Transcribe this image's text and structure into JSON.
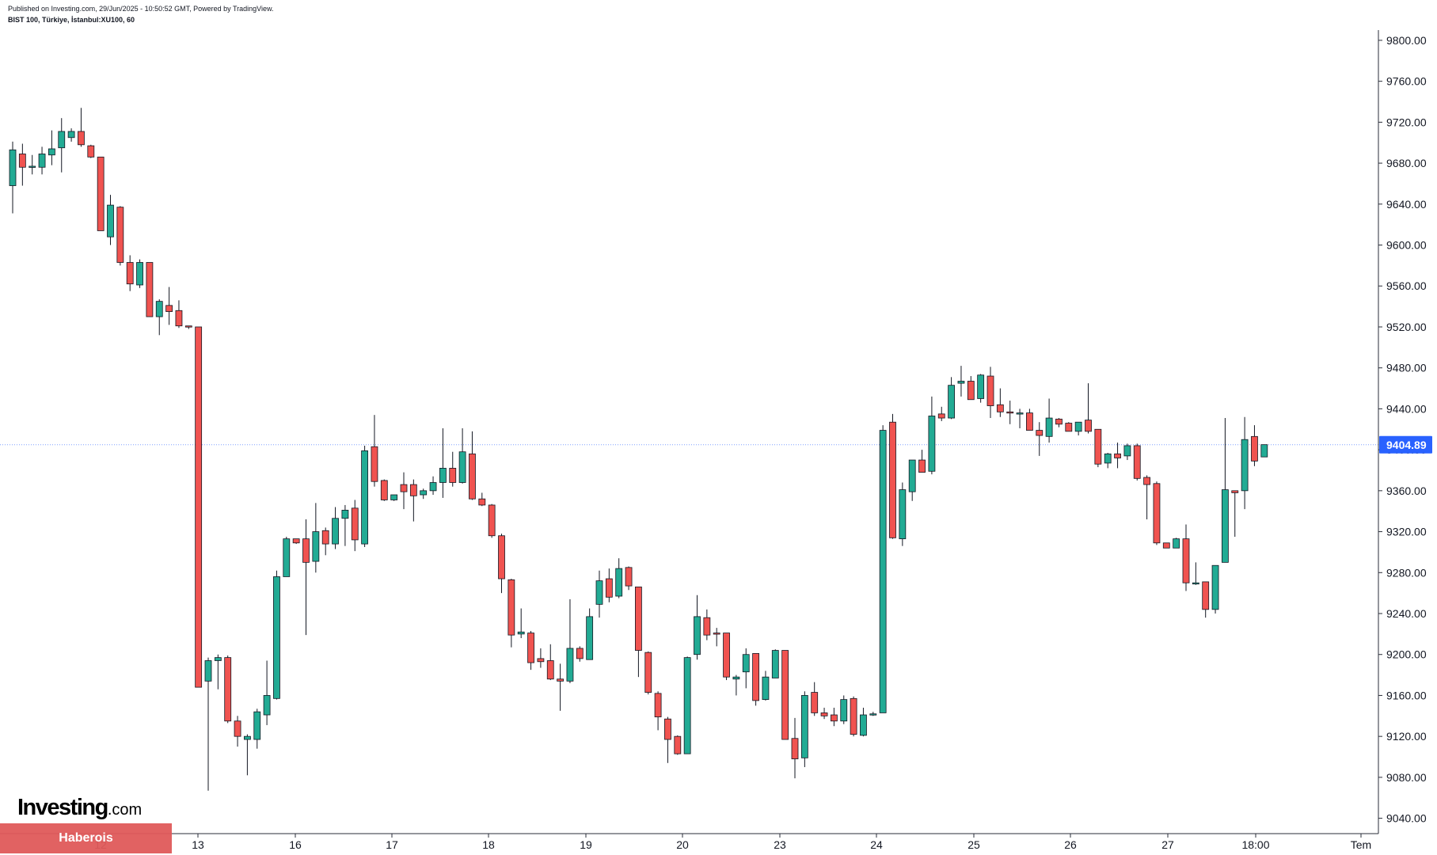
{
  "header": {
    "published": "Published on Investing.com, 29/Jun/2025 - 10:50:52 GMT, Powered by TradingView.",
    "symbol": "BIST 100, Türkiye, İstanbul:XU100, 60"
  },
  "logo": {
    "main": "Investing",
    "suffix": ".com"
  },
  "watermark": {
    "text": "Haberois"
  },
  "colors": {
    "up": "#22ab94",
    "down": "#f05350",
    "wick": "#131722",
    "last_price_bg": "#2962ff",
    "price_line": "#2962ff"
  },
  "chart_data": {
    "type": "candlestick",
    "title": "BIST 100, Türkiye, İstanbul:XU100, 60",
    "interval": "60",
    "y_axis": {
      "position": "right",
      "ylim": [
        9025,
        9810
      ],
      "ticks": [
        "9800.00",
        "9760.00",
        "9720.00",
        "9680.00",
        "9640.00",
        "9600.00",
        "9560.00",
        "9520.00",
        "9480.00",
        "9440.00",
        "9400.00",
        "9360.00",
        "9320.00",
        "9280.00",
        "9240.00",
        "9200.00",
        "9160.00",
        "9120.00",
        "9080.00",
        "9040.00"
      ]
    },
    "x_axis": {
      "ticks": [
        "12",
        "13",
        "16",
        "17",
        "18",
        "19",
        "20",
        "23",
        "24",
        "25",
        "26",
        "27",
        "18:00",
        "Tem"
      ]
    },
    "last_price": 9404.89,
    "grid": false,
    "candles": [
      {
        "o": 9658,
        "h": 9701,
        "l": 9631,
        "c": 9693
      },
      {
        "o": 9689,
        "h": 9699,
        "l": 9658,
        "c": 9676
      },
      {
        "o": 9677,
        "h": 9688,
        "l": 9669,
        "c": 9677
      },
      {
        "o": 9676,
        "h": 9696,
        "l": 9669,
        "c": 9689
      },
      {
        "o": 9688,
        "h": 9712,
        "l": 9678,
        "c": 9694
      },
      {
        "o": 9695,
        "h": 9724,
        "l": 9671,
        "c": 9711
      },
      {
        "o": 9705,
        "h": 9714,
        "l": 9701,
        "c": 9711
      },
      {
        "o": 9711,
        "h": 9734,
        "l": 9696,
        "c": 9698
      },
      {
        "o": 9697,
        "h": 9698,
        "l": 9685,
        "c": 9686
      },
      {
        "o": 9686,
        "h": 9686,
        "l": 9614,
        "c": 9614
      },
      {
        "o": 9608,
        "h": 9649,
        "l": 9600,
        "c": 9639
      },
      {
        "o": 9637,
        "h": 9638,
        "l": 9580,
        "c": 9583
      },
      {
        "o": 9583,
        "h": 9590,
        "l": 9555,
        "c": 9562
      },
      {
        "o": 9561,
        "h": 9586,
        "l": 9558,
        "c": 9583
      },
      {
        "o": 9583,
        "h": 9583,
        "l": 9530,
        "c": 9530
      },
      {
        "o": 9530,
        "h": 9547,
        "l": 9512,
        "c": 9545
      },
      {
        "o": 9541,
        "h": 9559,
        "l": 9522,
        "c": 9535
      },
      {
        "o": 9536,
        "h": 9546,
        "l": 9519,
        "c": 9521
      },
      {
        "o": 9521,
        "h": 9521,
        "l": 9518,
        "c": 9520
      },
      {
        "o": 9520,
        "h": 9520,
        "l": 9168,
        "c": 9168
      },
      {
        "o": 9174,
        "h": 9197,
        "l": 9067,
        "c": 9194
      },
      {
        "o": 9194,
        "h": 9200,
        "l": 9166,
        "c": 9197
      },
      {
        "o": 9197,
        "h": 9199,
        "l": 9133,
        "c": 9135
      },
      {
        "o": 9135,
        "h": 9140,
        "l": 9110,
        "c": 9120
      },
      {
        "o": 9117,
        "h": 9122,
        "l": 9082,
        "c": 9120
      },
      {
        "o": 9117,
        "h": 9147,
        "l": 9108,
        "c": 9144
      },
      {
        "o": 9141,
        "h": 9194,
        "l": 9131,
        "c": 9160
      },
      {
        "o": 9157,
        "h": 9282,
        "l": 9156,
        "c": 9276
      },
      {
        "o": 9276,
        "h": 9315,
        "l": 9276,
        "c": 9313
      },
      {
        "o": 9313,
        "h": 9313,
        "l": 9308,
        "c": 9309
      },
      {
        "o": 9313,
        "h": 9332,
        "l": 9219,
        "c": 9290
      },
      {
        "o": 9291,
        "h": 9348,
        "l": 9280,
        "c": 9320
      },
      {
        "o": 9321,
        "h": 9324,
        "l": 9297,
        "c": 9308
      },
      {
        "o": 9308,
        "h": 9344,
        "l": 9303,
        "c": 9333
      },
      {
        "o": 9333,
        "h": 9346,
        "l": 9306,
        "c": 9341
      },
      {
        "o": 9343,
        "h": 9351,
        "l": 9301,
        "c": 9312
      },
      {
        "o": 9308,
        "h": 9404,
        "l": 9305,
        "c": 9399
      },
      {
        "o": 9403,
        "h": 9434,
        "l": 9364,
        "c": 9369
      },
      {
        "o": 9370,
        "h": 9371,
        "l": 9350,
        "c": 9351
      },
      {
        "o": 9351,
        "h": 9356,
        "l": 9350,
        "c": 9356
      },
      {
        "o": 9366,
        "h": 9378,
        "l": 9342,
        "c": 9359
      },
      {
        "o": 9366,
        "h": 9371,
        "l": 9330,
        "c": 9355
      },
      {
        "o": 9356,
        "h": 9362,
        "l": 9352,
        "c": 9360
      },
      {
        "o": 9360,
        "h": 9374,
        "l": 9356,
        "c": 9368
      },
      {
        "o": 9368,
        "h": 9421,
        "l": 9353,
        "c": 9382
      },
      {
        "o": 9382,
        "h": 9398,
        "l": 9364,
        "c": 9368
      },
      {
        "o": 9368,
        "h": 9421,
        "l": 9367,
        "c": 9398
      },
      {
        "o": 9396,
        "h": 9418,
        "l": 9351,
        "c": 9352
      },
      {
        "o": 9352,
        "h": 9358,
        "l": 9345,
        "c": 9346
      },
      {
        "o": 9346,
        "h": 9347,
        "l": 9314,
        "c": 9316
      },
      {
        "o": 9316,
        "h": 9318,
        "l": 9260,
        "c": 9274
      },
      {
        "o": 9273,
        "h": 9274,
        "l": 9207,
        "c": 9219
      },
      {
        "o": 9220,
        "h": 9245,
        "l": 9216,
        "c": 9222
      },
      {
        "o": 9221,
        "h": 9223,
        "l": 9185,
        "c": 9192
      },
      {
        "o": 9196,
        "h": 9206,
        "l": 9187,
        "c": 9193
      },
      {
        "o": 9194,
        "h": 9210,
        "l": 9175,
        "c": 9176
      },
      {
        "o": 9176,
        "h": 9191,
        "l": 9145,
        "c": 9174
      },
      {
        "o": 9174,
        "h": 9254,
        "l": 9172,
        "c": 9206
      },
      {
        "o": 9206,
        "h": 9208,
        "l": 9193,
        "c": 9196
      },
      {
        "o": 9195,
        "h": 9245,
        "l": 9195,
        "c": 9237
      },
      {
        "o": 9249,
        "h": 9282,
        "l": 9236,
        "c": 9272
      },
      {
        "o": 9274,
        "h": 9284,
        "l": 9251,
        "c": 9256
      },
      {
        "o": 9257,
        "h": 9294,
        "l": 9255,
        "c": 9284
      },
      {
        "o": 9285,
        "h": 9286,
        "l": 9263,
        "c": 9267
      },
      {
        "o": 9266,
        "h": 9266,
        "l": 9178,
        "c": 9204
      },
      {
        "o": 9202,
        "h": 9203,
        "l": 9161,
        "c": 9163
      },
      {
        "o": 9162,
        "h": 9164,
        "l": 9126,
        "c": 9139
      },
      {
        "o": 9137,
        "h": 9139,
        "l": 9094,
        "c": 9117
      },
      {
        "o": 9120,
        "h": 9121,
        "l": 9102,
        "c": 9103
      },
      {
        "o": 9103,
        "h": 9198,
        "l": 9103,
        "c": 9197
      },
      {
        "o": 9200,
        "h": 9258,
        "l": 9195,
        "c": 9237
      },
      {
        "o": 9236,
        "h": 9244,
        "l": 9214,
        "c": 9219
      },
      {
        "o": 9221,
        "h": 9226,
        "l": 9208,
        "c": 9220
      },
      {
        "o": 9221,
        "h": 9221,
        "l": 9175,
        "c": 9178
      },
      {
        "o": 9176,
        "h": 9180,
        "l": 9160,
        "c": 9178
      },
      {
        "o": 9183,
        "h": 9206,
        "l": 9167,
        "c": 9200
      },
      {
        "o": 9201,
        "h": 9201,
        "l": 9150,
        "c": 9155
      },
      {
        "o": 9156,
        "h": 9184,
        "l": 9155,
        "c": 9178
      },
      {
        "o": 9177,
        "h": 9205,
        "l": 9177,
        "c": 9204
      },
      {
        "o": 9204,
        "h": 9204,
        "l": 9117,
        "c": 9117
      },
      {
        "o": 9118,
        "h": 9138,
        "l": 9079,
        "c": 9098
      },
      {
        "o": 9099,
        "h": 9164,
        "l": 9090,
        "c": 9160
      },
      {
        "o": 9163,
        "h": 9173,
        "l": 9140,
        "c": 9143
      },
      {
        "o": 9143,
        "h": 9148,
        "l": 9137,
        "c": 9140
      },
      {
        "o": 9141,
        "h": 9148,
        "l": 9130,
        "c": 9135
      },
      {
        "o": 9135,
        "h": 9160,
        "l": 9132,
        "c": 9156
      },
      {
        "o": 9157,
        "h": 9159,
        "l": 9120,
        "c": 9122
      },
      {
        "o": 9121,
        "h": 9148,
        "l": 9120,
        "c": 9141
      },
      {
        "o": 9142,
        "h": 9144,
        "l": 9140,
        "c": 9142
      },
      {
        "o": 9143,
        "h": 9424,
        "l": 9143,
        "c": 9419
      },
      {
        "o": 9427,
        "h": 9435,
        "l": 9313,
        "c": 9314
      },
      {
        "o": 9313,
        "h": 9368,
        "l": 9306,
        "c": 9361
      },
      {
        "o": 9359,
        "h": 9389,
        "l": 9350,
        "c": 9390
      },
      {
        "o": 9390,
        "h": 9400,
        "l": 9378,
        "c": 9378
      },
      {
        "o": 9379,
        "h": 9452,
        "l": 9376,
        "c": 9433
      },
      {
        "o": 9435,
        "h": 9442,
        "l": 9428,
        "c": 9431
      },
      {
        "o": 9431,
        "h": 9471,
        "l": 9430,
        "c": 9463
      },
      {
        "o": 9465,
        "h": 9482,
        "l": 9452,
        "c": 9467
      },
      {
        "o": 9467,
        "h": 9472,
        "l": 9449,
        "c": 9449
      },
      {
        "o": 9450,
        "h": 9474,
        "l": 9446,
        "c": 9473
      },
      {
        "o": 9472,
        "h": 9481,
        "l": 9431,
        "c": 9443
      },
      {
        "o": 9444,
        "h": 9460,
        "l": 9432,
        "c": 9437
      },
      {
        "o": 9437,
        "h": 9448,
        "l": 9425,
        "c": 9436
      },
      {
        "o": 9436,
        "h": 9440,
        "l": 9421,
        "c": 9436
      },
      {
        "o": 9436,
        "h": 9440,
        "l": 9419,
        "c": 9419
      },
      {
        "o": 9419,
        "h": 9427,
        "l": 9394,
        "c": 9414
      },
      {
        "o": 9413,
        "h": 9450,
        "l": 9407,
        "c": 9431
      },
      {
        "o": 9430,
        "h": 9431,
        "l": 9422,
        "c": 9425
      },
      {
        "o": 9426,
        "h": 9427,
        "l": 9418,
        "c": 9418
      },
      {
        "o": 9418,
        "h": 9427,
        "l": 9414,
        "c": 9427
      },
      {
        "o": 9429,
        "h": 9465,
        "l": 9416,
        "c": 9418
      },
      {
        "o": 9420,
        "h": 9420,
        "l": 9383,
        "c": 9386
      },
      {
        "o": 9387,
        "h": 9397,
        "l": 9382,
        "c": 9396
      },
      {
        "o": 9396,
        "h": 9407,
        "l": 9382,
        "c": 9392
      },
      {
        "o": 9394,
        "h": 9406,
        "l": 9390,
        "c": 9404
      },
      {
        "o": 9404,
        "h": 9406,
        "l": 9370,
        "c": 9372
      },
      {
        "o": 9373,
        "h": 9375,
        "l": 9332,
        "c": 9366
      },
      {
        "o": 9367,
        "h": 9369,
        "l": 9307,
        "c": 9309
      },
      {
        "o": 9309,
        "h": 9309,
        "l": 9304,
        "c": 9304
      },
      {
        "o": 9304,
        "h": 9314,
        "l": 9304,
        "c": 9313
      },
      {
        "o": 9313,
        "h": 9327,
        "l": 9262,
        "c": 9270
      },
      {
        "o": 9270,
        "h": 9290,
        "l": 9268,
        "c": 9270
      },
      {
        "o": 9271,
        "h": 9271,
        "l": 9236,
        "c": 9244
      },
      {
        "o": 9244,
        "h": 9287,
        "l": 9240,
        "c": 9287
      },
      {
        "o": 9290,
        "h": 9431,
        "l": 9290,
        "c": 9361
      },
      {
        "o": 9360,
        "h": 9360,
        "l": 9315,
        "c": 9358
      },
      {
        "o": 9360,
        "h": 9432,
        "l": 9342,
        "c": 9410
      },
      {
        "o": 9413,
        "h": 9424,
        "l": 9384,
        "c": 9389
      },
      {
        "o": 9393,
        "h": 9405,
        "l": 9393,
        "c": 9405
      }
    ]
  }
}
